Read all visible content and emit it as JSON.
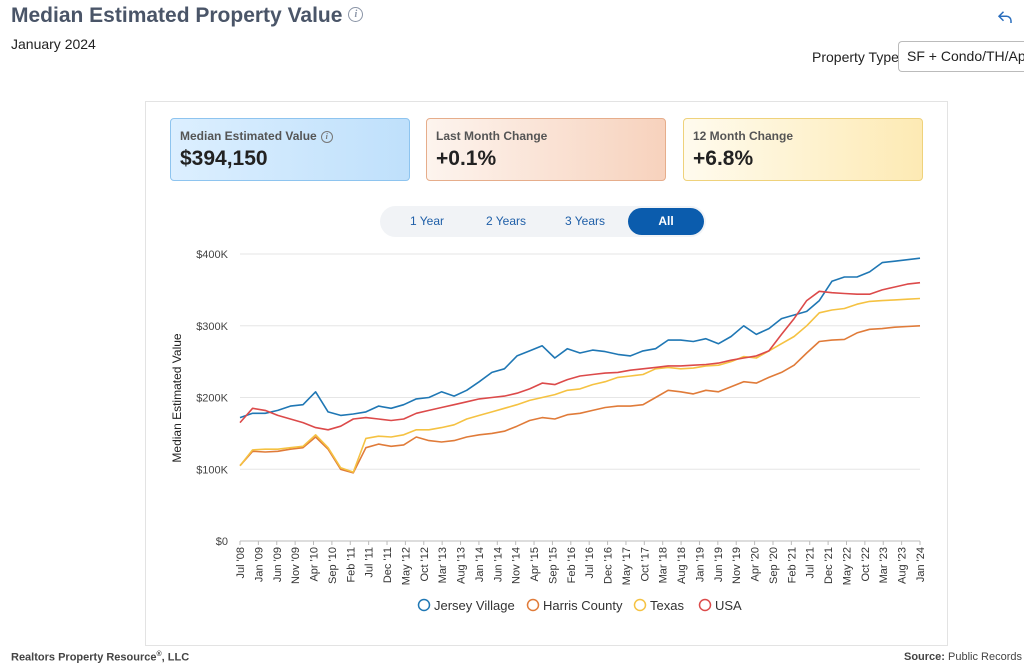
{
  "header": {
    "title": "Median Estimated Property Value",
    "subtitle": "January 2024",
    "property_type_label": "Property Type",
    "property_type_value": "SF + Condo/TH/Apt"
  },
  "cards": [
    {
      "label": "Median Estimated Value",
      "value": "$394,150"
    },
    {
      "label": "Last Month Change",
      "value": "+0.1%"
    },
    {
      "label": "12 Month Change",
      "value": "+6.8%"
    }
  ],
  "ranges": [
    "1 Year",
    "2 Years",
    "3 Years",
    "All"
  ],
  "active_range": "All",
  "footer": {
    "left": "Realtors Property Resource",
    "left_mark": "®",
    "left_suffix": ", LLC",
    "right_label": "Source:",
    "right_value": "Public Records"
  },
  "chart_data": {
    "type": "line",
    "ylabel": "Median Estimated Value",
    "ylim": [
      0,
      400000
    ],
    "yticks": [
      0,
      100000,
      200000,
      300000,
      400000
    ],
    "ytick_labels": [
      "$0",
      "$100K",
      "$200K",
      "$300K",
      "$400K"
    ],
    "xticks": [
      "Jul '08",
      "Jan '09",
      "Jun '09",
      "Nov '09",
      "Apr '10",
      "Sep '10",
      "Feb '11",
      "Jul '11",
      "Dec '11",
      "May '12",
      "Oct '12",
      "Mar '13",
      "Aug '13",
      "Jan '14",
      "Jun '14",
      "Nov '14",
      "Apr '15",
      "Sep '15",
      "Feb '16",
      "Jul '16",
      "Dec '16",
      "May '17",
      "Oct '17",
      "Mar '18",
      "Aug '18",
      "Jan '19",
      "Jun '19",
      "Nov '19",
      "Apr '20",
      "Sep '20",
      "Feb '21",
      "Jul '21",
      "Dec '21",
      "May '22",
      "Oct '22",
      "Mar '23",
      "Aug '23",
      "Jan '24"
    ],
    "legend_position": "bottom",
    "grid": true,
    "series": [
      {
        "name": "Jersey Village",
        "color": "#1f77b4",
        "values": [
          172000,
          178000,
          178000,
          182000,
          188000,
          190000,
          208000,
          180000,
          175000,
          177000,
          180000,
          188000,
          185000,
          190000,
          198000,
          200000,
          208000,
          202000,
          210000,
          222000,
          235000,
          240000,
          258000,
          265000,
          272000,
          255000,
          268000,
          262000,
          266000,
          264000,
          260000,
          258000,
          265000,
          268000,
          280000,
          280000,
          278000,
          282000,
          275000,
          285000,
          300000,
          288000,
          296000,
          310000,
          315000,
          320000,
          335000,
          362000,
          368000,
          368000,
          375000,
          388000,
          390000,
          392000,
          394150
        ]
      },
      {
        "name": "Harris County",
        "color": "#e07b39",
        "values": [
          105000,
          125000,
          124000,
          125000,
          128000,
          130000,
          145000,
          128000,
          100000,
          95000,
          130000,
          135000,
          132000,
          134000,
          145000,
          140000,
          138000,
          140000,
          145000,
          148000,
          150000,
          153000,
          160000,
          168000,
          172000,
          170000,
          176000,
          178000,
          182000,
          186000,
          188000,
          188000,
          190000,
          200000,
          210000,
          208000,
          205000,
          210000,
          208000,
          215000,
          222000,
          220000,
          228000,
          235000,
          245000,
          262000,
          278000,
          280000,
          281000,
          290000,
          295000,
          296000,
          298000,
          299000,
          300000
        ]
      },
      {
        "name": "Texas",
        "color": "#f5c242",
        "values": [
          105000,
          127000,
          128000,
          128000,
          130000,
          132000,
          148000,
          130000,
          102000,
          96000,
          143000,
          146000,
          145000,
          148000,
          155000,
          155000,
          158000,
          162000,
          170000,
          175000,
          180000,
          185000,
          190000,
          196000,
          200000,
          204000,
          210000,
          212000,
          218000,
          222000,
          228000,
          230000,
          232000,
          240000,
          242000,
          240000,
          241000,
          244000,
          245000,
          250000,
          257000,
          255000,
          265000,
          275000,
          285000,
          300000,
          318000,
          322000,
          324000,
          330000,
          334000,
          335000,
          336000,
          337000,
          338000
        ]
      },
      {
        "name": "USA",
        "color": "#dc4a4a",
        "values": [
          165000,
          185000,
          182000,
          175000,
          170000,
          165000,
          158000,
          155000,
          160000,
          170000,
          172000,
          170000,
          168000,
          170000,
          178000,
          182000,
          186000,
          190000,
          194000,
          198000,
          200000,
          202000,
          206000,
          212000,
          220000,
          218000,
          225000,
          230000,
          232000,
          234000,
          235000,
          238000,
          240000,
          242000,
          244000,
          244000,
          245000,
          246000,
          248000,
          252000,
          255000,
          258000,
          265000,
          288000,
          310000,
          335000,
          348000,
          346000,
          345000,
          344000,
          344000,
          350000,
          354000,
          358000,
          360000
        ]
      }
    ]
  }
}
